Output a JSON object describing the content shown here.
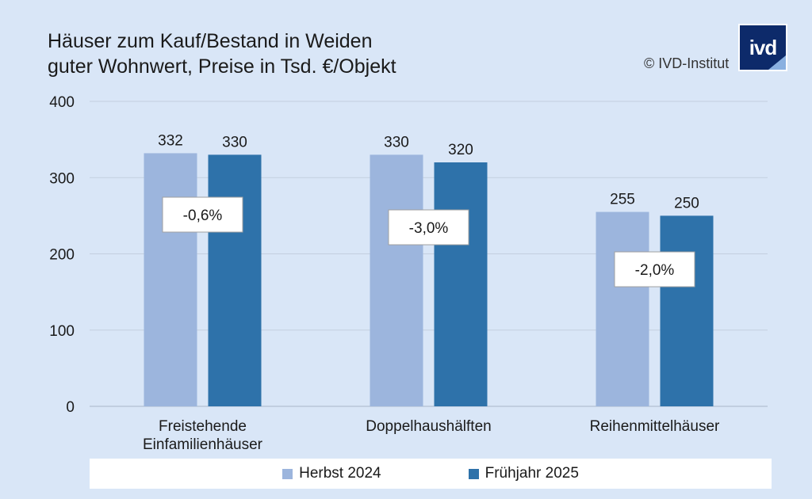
{
  "title_line1": "Häuser zum Kauf/Bestand in Weiden",
  "title_line2": "guter Wohnwert, Preise in Tsd. €/Objekt",
  "copyright": "© IVD-Institut",
  "logo_text": "ivd",
  "chart_data": {
    "type": "bar",
    "categories": [
      "Freistehende\nEinfamilienhäuser",
      "Doppelhaushälften",
      "Reihenmittelhäuser"
    ],
    "series": [
      {
        "name": "Herbst 2024",
        "values": [
          332,
          330,
          255
        ],
        "color": "#9cb5dd"
      },
      {
        "name": "Frühjahr 2025",
        "values": [
          330,
          320,
          250
        ],
        "color": "#2e72aa"
      }
    ],
    "change_labels": [
      "-0,6%",
      "-3,0%",
      "-2,0%"
    ],
    "ylim": [
      0,
      400
    ],
    "yticks": [
      0,
      100,
      200,
      300,
      400
    ],
    "grid": true,
    "legend_position": "bottom"
  }
}
